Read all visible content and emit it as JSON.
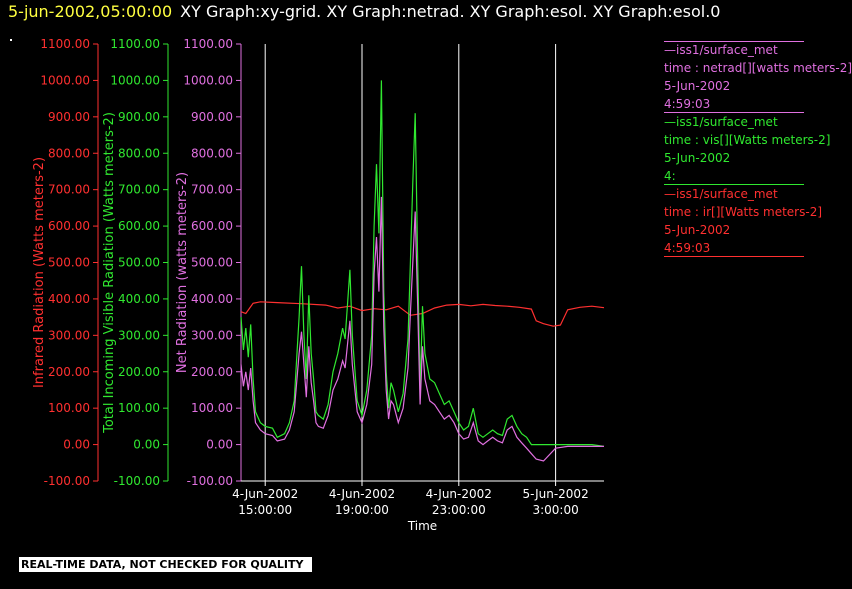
{
  "header": {
    "timestamp": "5-jun-2002,05:00:00",
    "title": "XY Graph:xy-grid.  XY Graph:netrad.  XY Graph:esol.  XY Graph:esol.0"
  },
  "colors": {
    "background": "#000000",
    "infrared": "#ff3030",
    "visible": "#30e830",
    "net": "#e070e0",
    "grid": "#ffffff"
  },
  "legend": [
    {
      "lines": [
        "—iss1/surface_met",
        "time : netrad[][watts meters-2]",
        "5-Jun-2002",
        "4:59:03"
      ],
      "color": "#e070e0"
    },
    {
      "lines": [
        "—iss1/surface_met",
        "time : vis[][Watts meters-2]",
        "5-Jun-2002",
        "4:"
      ],
      "color": "#30e830"
    },
    {
      "lines": [
        "—iss1/surface_met",
        "time : ir[][Watts meters-2]",
        "5-Jun-2002",
        "4:59:03"
      ],
      "color": "#ff3030"
    }
  ],
  "footer": "REAL-TIME DATA, NOT CHECKED FOR QUALITY",
  "chart_data": {
    "type": "line",
    "xlabel": "Time",
    "x_ticks": [
      {
        "t": 15,
        "date": "4-Jun-2002",
        "time": "15:00:00"
      },
      {
        "t": 19,
        "date": "4-Jun-2002",
        "time": "19:00:00"
      },
      {
        "t": 23,
        "date": "4-Jun-2002",
        "time": "23:00:00"
      },
      {
        "t": 27,
        "date": "5-Jun-2002",
        "time": "3:00:00"
      }
    ],
    "xlim": [
      14.0,
      29.0
    ],
    "ylim": [
      -100,
      1100
    ],
    "y_ticks": [
      -100,
      0,
      100,
      200,
      300,
      400,
      500,
      600,
      700,
      800,
      900,
      1000,
      1100
    ],
    "y_tick_labels": [
      "-100.00",
      "0.00",
      "100.00",
      "200.00",
      "300.00",
      "400.00",
      "500.00",
      "600.00",
      "700.00",
      "800.00",
      "900.00",
      "1000.00",
      "1100.00"
    ],
    "axes": [
      {
        "label": "Infrared Radiation (Watts meters-2)",
        "color": "#ff3030"
      },
      {
        "label": "Total Incoming Visible Radiation (Watts meters-2)",
        "color": "#30e830"
      },
      {
        "label": "Net Radiation (watts meters-2)",
        "color": "#e070e0"
      }
    ],
    "grid_vertical": true,
    "series": [
      {
        "name": "ir",
        "color": "#ff3030",
        "x": [
          14.0,
          14.2,
          14.5,
          14.8,
          15.5,
          16.5,
          17.5,
          18.0,
          18.5,
          19.0,
          19.5,
          20.0,
          20.5,
          21.0,
          21.5,
          22.0,
          22.5,
          23.0,
          23.5,
          24.0,
          24.5,
          25.0,
          25.5,
          26.0,
          26.2,
          26.5,
          26.9,
          27.2,
          27.5,
          28.0,
          28.5,
          29.0
        ],
        "y": [
          365,
          360,
          388,
          392,
          390,
          387,
          383,
          375,
          380,
          368,
          373,
          370,
          380,
          355,
          360,
          375,
          383,
          385,
          381,
          385,
          382,
          380,
          377,
          372,
          340,
          332,
          325,
          328,
          370,
          377,
          380,
          376
        ]
      },
      {
        "name": "vis",
        "color": "#30e830",
        "x": [
          14.0,
          14.1,
          14.2,
          14.3,
          14.4,
          14.5,
          14.6,
          14.8,
          15.0,
          15.3,
          15.5,
          15.8,
          16.0,
          16.2,
          16.4,
          16.5,
          16.6,
          16.7,
          16.8,
          16.9,
          17.0,
          17.1,
          17.2,
          17.4,
          17.6,
          17.8,
          18.0,
          18.2,
          18.3,
          18.5,
          18.6,
          18.8,
          19.0,
          19.2,
          19.4,
          19.5,
          19.6,
          19.7,
          19.8,
          19.9,
          20.0,
          20.1,
          20.2,
          20.3,
          20.5,
          20.7,
          20.9,
          21.0,
          21.1,
          21.2,
          21.3,
          21.4,
          21.5,
          21.6,
          21.8,
          22.0,
          22.2,
          22.4,
          22.6,
          22.8,
          23.0,
          23.2,
          23.4,
          23.6,
          23.8,
          24.0,
          24.2,
          24.4,
          24.6,
          24.8,
          25.0,
          25.2,
          25.4,
          25.6,
          25.8,
          26.0,
          26.2,
          26.5,
          27.0,
          27.5,
          28.0,
          28.5,
          29.0
        ],
        "y": [
          350,
          260,
          320,
          240,
          330,
          180,
          90,
          60,
          50,
          45,
          20,
          30,
          60,
          120,
          350,
          490,
          300,
          180,
          410,
          250,
          180,
          90,
          80,
          70,
          110,
          200,
          250,
          320,
          290,
          480,
          300,
          120,
          80,
          150,
          300,
          600,
          770,
          580,
          1000,
          420,
          200,
          100,
          170,
          150,
          90,
          140,
          290,
          500,
          720,
          910,
          500,
          150,
          380,
          250,
          180,
          170,
          140,
          110,
          120,
          90,
          60,
          40,
          50,
          100,
          30,
          20,
          30,
          40,
          30,
          25,
          70,
          80,
          50,
          30,
          20,
          0,
          0,
          0,
          0,
          0,
          0,
          0,
          -5
        ]
      },
      {
        "name": "netrad",
        "color": "#e070e0",
        "x": [
          14.0,
          14.1,
          14.2,
          14.3,
          14.4,
          14.5,
          14.6,
          14.8,
          15.0,
          15.3,
          15.5,
          15.8,
          16.0,
          16.2,
          16.4,
          16.5,
          16.6,
          16.7,
          16.8,
          16.9,
          17.0,
          17.1,
          17.2,
          17.4,
          17.6,
          17.8,
          18.0,
          18.2,
          18.3,
          18.5,
          18.6,
          18.8,
          19.0,
          19.2,
          19.4,
          19.5,
          19.6,
          19.7,
          19.8,
          19.9,
          20.0,
          20.1,
          20.2,
          20.3,
          20.5,
          20.7,
          20.9,
          21.0,
          21.1,
          21.2,
          21.3,
          21.4,
          21.5,
          21.6,
          21.8,
          22.0,
          22.2,
          22.4,
          22.6,
          22.8,
          23.0,
          23.2,
          23.4,
          23.6,
          23.8,
          24.0,
          24.2,
          24.4,
          24.6,
          24.8,
          25.0,
          25.2,
          25.4,
          25.6,
          25.8,
          26.0,
          26.2,
          26.5,
          27.0,
          27.5,
          28.0,
          28.5,
          29.0
        ],
        "y": [
          220,
          160,
          200,
          150,
          210,
          120,
          60,
          40,
          30,
          25,
          10,
          15,
          40,
          90,
          250,
          310,
          220,
          130,
          270,
          170,
          120,
          60,
          50,
          45,
          80,
          150,
          180,
          230,
          210,
          340,
          220,
          90,
          60,
          110,
          220,
          470,
          570,
          420,
          680,
          320,
          150,
          70,
          120,
          110,
          60,
          100,
          210,
          360,
          500,
          640,
          380,
          110,
          270,
          180,
          120,
          110,
          90,
          70,
          80,
          60,
          30,
          15,
          20,
          60,
          10,
          0,
          10,
          20,
          10,
          5,
          40,
          50,
          20,
          5,
          -10,
          -25,
          -40,
          -45,
          -10,
          -5,
          -5,
          -5,
          -5
        ]
      }
    ]
  }
}
